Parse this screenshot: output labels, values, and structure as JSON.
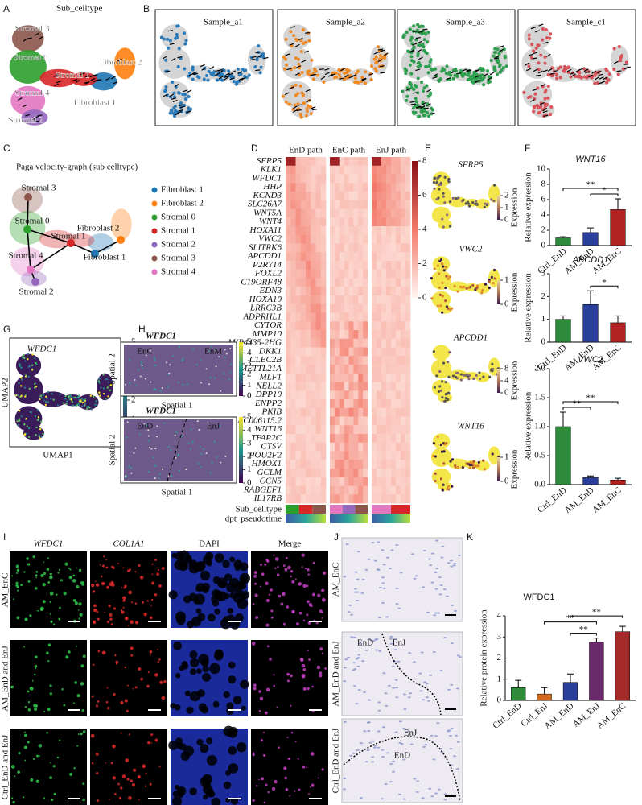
{
  "panel_labels": [
    "A",
    "B",
    "C",
    "D",
    "E",
    "F",
    "G",
    "H",
    "I",
    "J",
    "K"
  ],
  "a": {
    "title": "Sub_celltype",
    "cluster_labels": [
      "Stromal 3",
      "Stromal 0",
      "Fibroblast 2",
      "Stromal 1",
      "Stromal 4",
      "Fibroblast 1",
      "Stromal 2"
    ]
  },
  "b": {
    "samples": [
      "Sample_a1",
      "Sample_a2",
      "Sample_a3",
      "Sample_c1"
    ]
  },
  "c": {
    "title": "Paga velocity-graph (sub celltype)",
    "node_labels": [
      "Stromal 3",
      "Stromal 0",
      "Fibroblast 2",
      "Stromal 1",
      "Fibroblast 1",
      "Stromal 4",
      "Stromal 2"
    ],
    "legend": [
      {
        "name": "Fibroblast 1",
        "color": "#1f77b4"
      },
      {
        "name": "Fibroblast 2",
        "color": "#ff7f0e"
      },
      {
        "name": "Stromal 0",
        "color": "#2ca02c"
      },
      {
        "name": "Stromal 1",
        "color": "#d62728"
      },
      {
        "name": "Stromal 2",
        "color": "#9467bd"
      },
      {
        "name": "Stromal 3",
        "color": "#8c564b"
      },
      {
        "name": "Stromal 4",
        "color": "#e377c2"
      }
    ]
  },
  "d": {
    "columns": [
      "EnD path",
      "EnC path",
      "EnJ path"
    ],
    "genes": [
      "SFRP5",
      "KLK1",
      "WFDC1",
      "HHP",
      "KCND3",
      "SLC26A7",
      "WNT5A",
      "WNT4",
      "HOXA11",
      "VWC2",
      "SLITRK6",
      "APCDD1",
      "P2RY14",
      "FOXL2",
      "C19ORF48",
      "EDN3",
      "HOXA10",
      "LRRC3B",
      "ADPRHL1",
      "CYTOR",
      "MMP10",
      "MIR4435-2HG",
      "DKK1",
      "CLEC2B",
      "METTL21A",
      "MLF1",
      "NELL2",
      "DPP10",
      "ENPP2",
      "PKIB",
      "AC006115.2",
      "WNT16",
      "TFAP2C",
      "CTSV",
      "POU2F2",
      "HMOX1",
      "GCLM",
      "CCN5",
      "RABGEF1",
      "IL17RB"
    ],
    "annotation_rows": [
      "Sub_celltype",
      "dpt_pseudotime"
    ],
    "colorbar_ticks": [
      0,
      2,
      4,
      6,
      8
    ]
  },
  "e": {
    "panels": [
      {
        "gene": "SFRP5",
        "colorbar_ticks": [
          0,
          1,
          2
        ]
      },
      {
        "gene": "VWC2",
        "colorbar_ticks": [
          0,
          1
        ]
      },
      {
        "gene": "APCDD1",
        "colorbar_ticks": [
          0,
          4,
          8
        ]
      },
      {
        "gene": "WNT16",
        "colorbar_ticks": [
          0,
          1
        ]
      }
    ],
    "colorbar_label": "Expression"
  },
  "g": {
    "gene": "WFDC1",
    "x_label": "UMAP1",
    "y_label": "UMAP2",
    "colorbar_ticks": [
      0,
      1,
      2,
      3,
      4,
      5
    ]
  },
  "h": {
    "sections": [
      {
        "gene": "WFDC1",
        "regions": [
          "EnC",
          "EnM"
        ]
      },
      {
        "gene": "WFDC1",
        "regions": [
          "EnD",
          "EnJ"
        ]
      }
    ],
    "x_label": "Spatial 1",
    "y_label": "Spatial 2",
    "colorbar_ticks": [
      0,
      1,
      2,
      3,
      4,
      5
    ]
  },
  "i": {
    "columns": [
      "WFDC1",
      "COL1A1",
      "DAPI",
      "Merge"
    ],
    "rows": [
      "AM_EnC",
      "AM_EnD and EnJ",
      "Ctrl_EnD and EnJ"
    ]
  },
  "j": {
    "rows": [
      "AM_EnC",
      "AM_EnD and EnJ",
      "Ctrl_EnD and EnJ"
    ],
    "row_annotations": [
      [],
      [
        "EnD",
        "EnJ"
      ],
      [
        "EnJ",
        "EnD"
      ]
    ]
  },
  "chart_data": [
    {
      "type": "bar",
      "title": "WNT16",
      "y_label": "Relative expression",
      "categories": [
        "Ctrl_EnD",
        "AM_EnD",
        "AM_EnC"
      ],
      "values": [
        1.0,
        1.7,
        4.7
      ],
      "errors": [
        0.15,
        0.6,
        1.4
      ],
      "colors": [
        "#2e8b3a",
        "#2a3f9a",
        "#b22222"
      ],
      "ylim": [
        0,
        10
      ],
      "yticks": [
        0,
        2,
        4,
        6,
        8,
        10
      ],
      "significance": [
        {
          "pair": [
            "AM_EnD",
            "AM_EnC"
          ],
          "label": "*"
        },
        {
          "pair": [
            "Ctrl_EnD",
            "AM_EnC"
          ],
          "label": "**"
        }
      ]
    },
    {
      "type": "bar",
      "title": "APCDD1",
      "y_label": "Relative expression",
      "categories": [
        "Ctrl_EnD",
        "AM_EnD",
        "AM_EnC"
      ],
      "values": [
        1.0,
        1.65,
        0.85
      ],
      "errors": [
        0.15,
        0.6,
        0.3
      ],
      "colors": [
        "#2e8b3a",
        "#2a3f9a",
        "#b22222"
      ],
      "ylim": [
        0,
        3
      ],
      "yticks": [
        0,
        1,
        2,
        3
      ],
      "significance": [
        {
          "pair": [
            "AM_EnD",
            "AM_EnC"
          ],
          "label": "*"
        }
      ]
    },
    {
      "type": "bar",
      "title": "VWC2",
      "y_label": "Relative expression",
      "categories": [
        "Ctrl_EnD",
        "AM_EnD",
        "AM_EnC"
      ],
      "values": [
        1.0,
        0.12,
        0.08
      ],
      "errors": [
        0.25,
        0.03,
        0.03
      ],
      "colors": [
        "#2e8b3a",
        "#2a3f9a",
        "#b22222"
      ],
      "ylim": [
        0,
        2
      ],
      "yticks": [
        {
          "value": 0,
          "label": "0.0"
        },
        0.5,
        {
          "value": 1,
          "label": "1.0"
        },
        1.5,
        {
          "value": 2,
          "label": "2.0"
        }
      ],
      "significance": [
        {
          "pair": [
            "Ctrl_EnD",
            "AM_EnD"
          ],
          "label": "**"
        },
        {
          "pair": [
            "Ctrl_EnD",
            "AM_EnC"
          ],
          "label": "**"
        }
      ]
    },
    {
      "type": "bar",
      "title": "WFDC1",
      "y_label": "Relative protein expression",
      "categories": [
        "Ctrl_EnD",
        "Ctrl_EnJ",
        "AM_EnD",
        "AM_EnJ",
        "AM_EnC"
      ],
      "values": [
        0.6,
        0.3,
        0.85,
        2.75,
        3.25
      ],
      "errors": [
        0.35,
        0.3,
        0.4,
        0.2,
        0.25
      ],
      "colors": [
        "#2e8b3a",
        "#d2691e",
        "#2a3f9a",
        "#6a2a6a",
        "#a52a2a"
      ],
      "ylim": [
        0,
        4
      ],
      "yticks": [
        0,
        1,
        2,
        3,
        4
      ],
      "significance": [
        {
          "pair": [
            "AM_EnD",
            "AM_EnJ"
          ],
          "label": "**"
        },
        {
          "pair": [
            "AM_EnD",
            "AM_EnC"
          ],
          "label": "**"
        },
        {
          "pair": [
            "Ctrl_EnJ",
            "AM_EnJ"
          ],
          "label": "**"
        }
      ]
    }
  ]
}
